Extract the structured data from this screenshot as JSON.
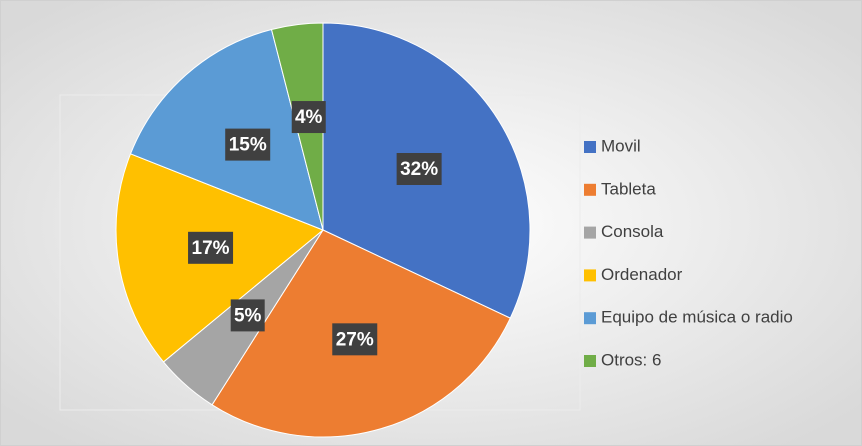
{
  "chart_data": {
    "type": "pie",
    "categories": [
      "Movil",
      "Tableta",
      "Consola",
      "Ordenador",
      "Equipo de música o radio",
      "Otros: 6"
    ],
    "values": [
      32,
      27,
      5,
      17,
      15,
      4
    ],
    "value_labels": [
      "32%",
      "27%",
      "5%",
      "17%",
      "15%",
      "4%"
    ],
    "colors": [
      "#4472c4",
      "#ed7d31",
      "#a5a5a5",
      "#ffc000",
      "#5b9bd5",
      "#70ad47"
    ],
    "legend": "right"
  }
}
